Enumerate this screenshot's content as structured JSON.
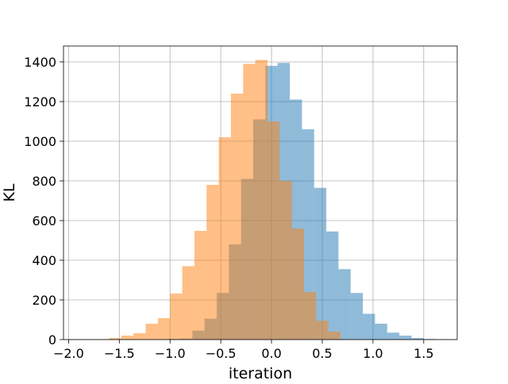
{
  "chart_data": {
    "type": "bar",
    "title": "",
    "xlabel": "iteration",
    "ylabel": "KL",
    "xlim": [
      -2.05,
      1.83
    ],
    "ylim": [
      0,
      1480
    ],
    "xticks": [
      -2.0,
      -1.5,
      -1.0,
      -0.5,
      0.0,
      0.5,
      1.0,
      1.5
    ],
    "xtick_labels": [
      "−2.0",
      "−1.5",
      "−1.0",
      "−0.5",
      "0.0",
      "0.5",
      "1.0",
      "1.5"
    ],
    "yticks": [
      0,
      200,
      400,
      600,
      800,
      1000,
      1200,
      1400
    ],
    "ytick_labels": [
      "0",
      "200",
      "400",
      "600",
      "800",
      "1000",
      "1200",
      "1400"
    ],
    "grid": true,
    "series": [
      {
        "color": "#1f77b4",
        "alpha": 0.5,
        "bin_edges": [
          -1.02,
          -0.9,
          -0.78,
          -0.66,
          -0.54,
          -0.42,
          -0.3,
          -0.18,
          -0.06,
          0.06,
          0.18,
          0.3,
          0.42,
          0.54,
          0.66,
          0.78,
          0.9,
          1.02,
          1.14,
          1.26,
          1.38,
          1.5,
          1.62
        ],
        "values": [
          3,
          5,
          45,
          105,
          235,
          480,
          810,
          1110,
          1380,
          1395,
          1210,
          1060,
          765,
          545,
          355,
          235,
          130,
          80,
          35,
          20,
          8,
          3
        ]
      },
      {
        "color": "#ff7f0e",
        "alpha": 0.5,
        "bin_edges": [
          -1.72,
          -1.6,
          -1.48,
          -1.36,
          -1.24,
          -1.12,
          -1.0,
          -0.88,
          -0.76,
          -0.64,
          -0.52,
          -0.4,
          -0.28,
          -0.16,
          -0.04,
          0.08,
          0.2,
          0.32,
          0.44,
          0.56,
          0.68
        ],
        "values": [
          2,
          8,
          20,
          32,
          80,
          108,
          232,
          370,
          548,
          780,
          1020,
          1240,
          1390,
          1410,
          1100,
          800,
          560,
          240,
          95,
          40
        ]
      }
    ]
  }
}
